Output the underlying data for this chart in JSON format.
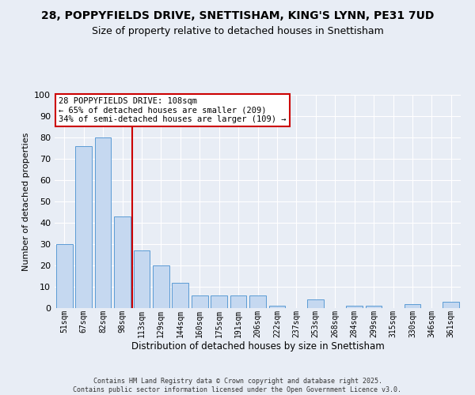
{
  "title1": "28, POPPYFIELDS DRIVE, SNETTISHAM, KING'S LYNN, PE31 7UD",
  "title2": "Size of property relative to detached houses in Snettisham",
  "xlabel": "Distribution of detached houses by size in Snettisham",
  "ylabel": "Number of detached properties",
  "categories": [
    "51sqm",
    "67sqm",
    "82sqm",
    "98sqm",
    "113sqm",
    "129sqm",
    "144sqm",
    "160sqm",
    "175sqm",
    "191sqm",
    "206sqm",
    "222sqm",
    "237sqm",
    "253sqm",
    "268sqm",
    "284sqm",
    "299sqm",
    "315sqm",
    "330sqm",
    "346sqm",
    "361sqm"
  ],
  "values": [
    30,
    76,
    80,
    43,
    27,
    20,
    12,
    6,
    6,
    6,
    6,
    1,
    0,
    4,
    0,
    1,
    1,
    0,
    2,
    0,
    3
  ],
  "bar_color": "#c5d8f0",
  "bar_edge_color": "#5b9bd5",
  "vline_x": 3.5,
  "vline_color": "#cc0000",
  "annotation_line1": "28 POPPYFIELDS DRIVE: 108sqm",
  "annotation_line2": "← 65% of detached houses are smaller (209)",
  "annotation_line3": "34% of semi-detached houses are larger (109) →",
  "annotation_box_facecolor": "white",
  "annotation_box_edgecolor": "#cc0000",
  "annotation_fontsize": 7.5,
  "background_color": "#e8edf5",
  "footer_line1": "Contains HM Land Registry data © Crown copyright and database right 2025.",
  "footer_line2": "Contains public sector information licensed under the Open Government Licence v3.0.",
  "title1_fontsize": 10,
  "title2_fontsize": 9,
  "xlabel_fontsize": 8.5,
  "ylabel_fontsize": 8,
  "ylim": [
    0,
    100
  ],
  "yticks": [
    0,
    10,
    20,
    30,
    40,
    50,
    60,
    70,
    80,
    90,
    100
  ]
}
